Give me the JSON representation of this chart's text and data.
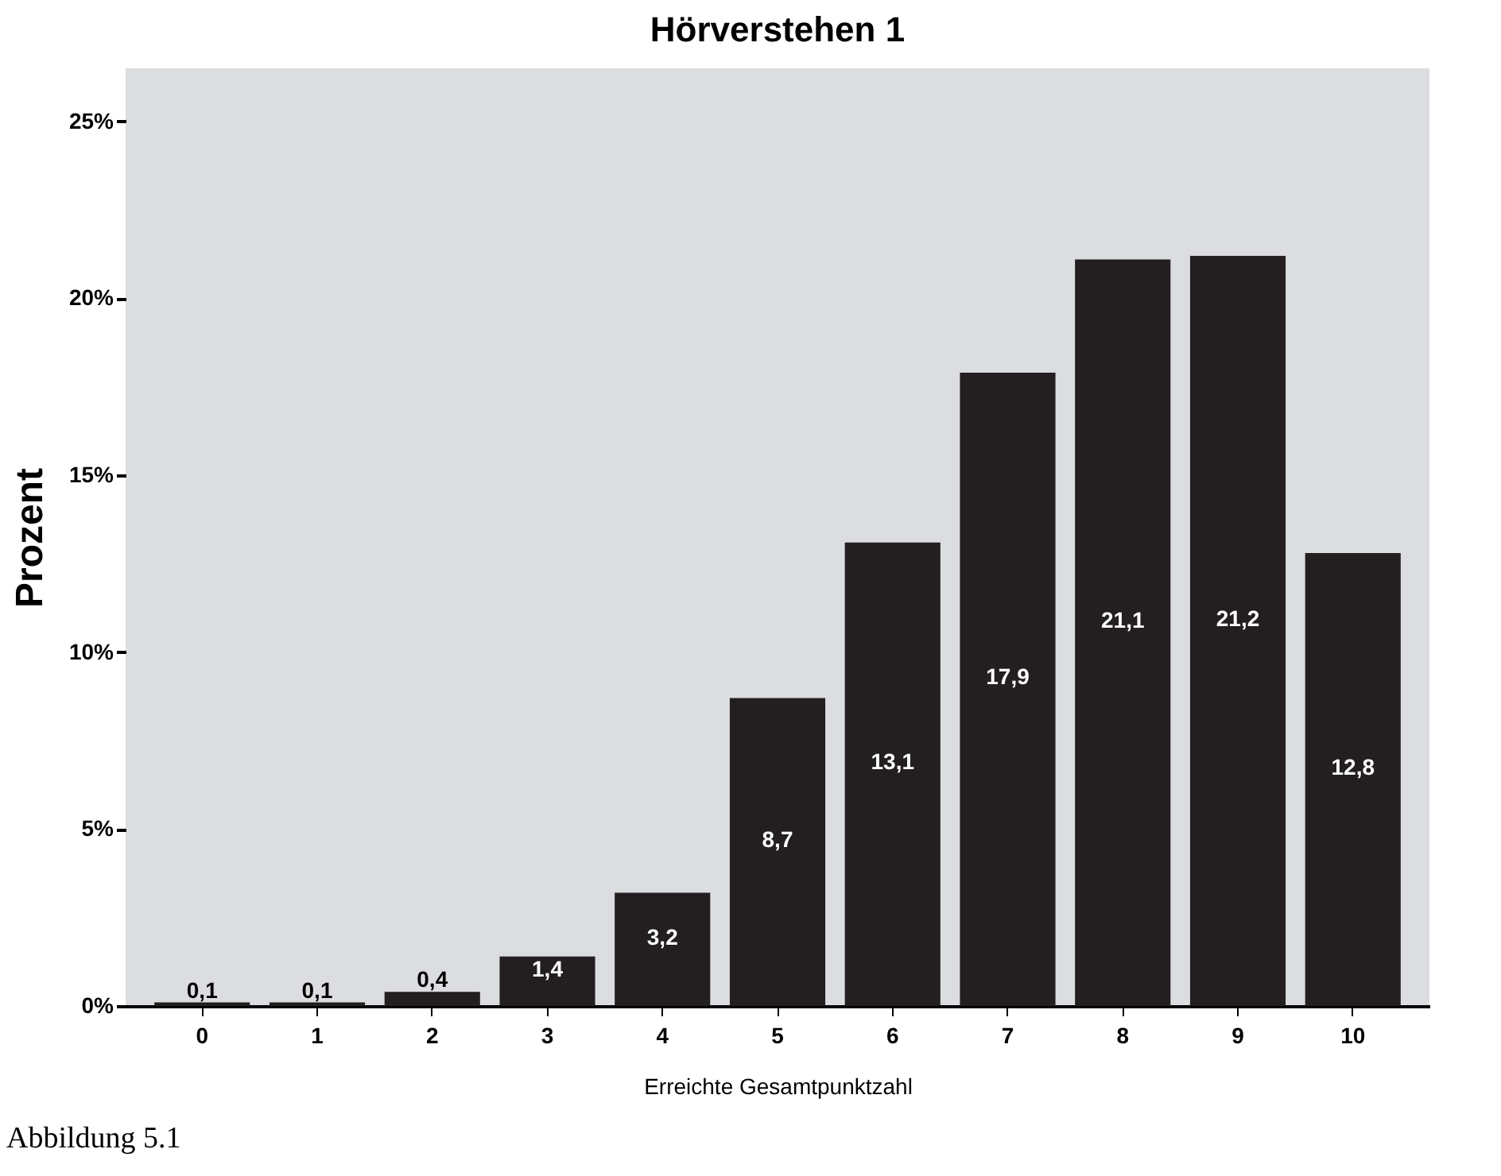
{
  "chart_data": {
    "type": "bar",
    "title": "Hörverstehen 1",
    "xlabel": "Erreichte Gesamtpunktzahl",
    "ylabel": "Prozent",
    "categories": [
      "0",
      "1",
      "2",
      "3",
      "4",
      "5",
      "6",
      "7",
      "8",
      "9",
      "10"
    ],
    "values": [
      0.1,
      0.1,
      0.4,
      1.4,
      3.2,
      8.7,
      13.1,
      17.9,
      21.1,
      21.2,
      12.8
    ],
    "value_labels": [
      "0,1",
      "0,1",
      "0,4",
      "1,4",
      "3,2",
      "8,7",
      "13,1",
      "17,9",
      "21,1",
      "21,2",
      "12,8"
    ],
    "color": "#231f20",
    "ylim": [
      0,
      26.5
    ],
    "yticks": [
      {
        "value": 0,
        "label": "0%"
      },
      {
        "value": 5,
        "label": "5%"
      },
      {
        "value": 10,
        "label": "10%"
      },
      {
        "value": 15,
        "label": "15%"
      },
      {
        "value": 20,
        "label": "20%"
      },
      {
        "value": 25,
        "label": "25%"
      }
    ],
    "grid": false,
    "annotations": [
      "Abbildung 5.1"
    ]
  }
}
